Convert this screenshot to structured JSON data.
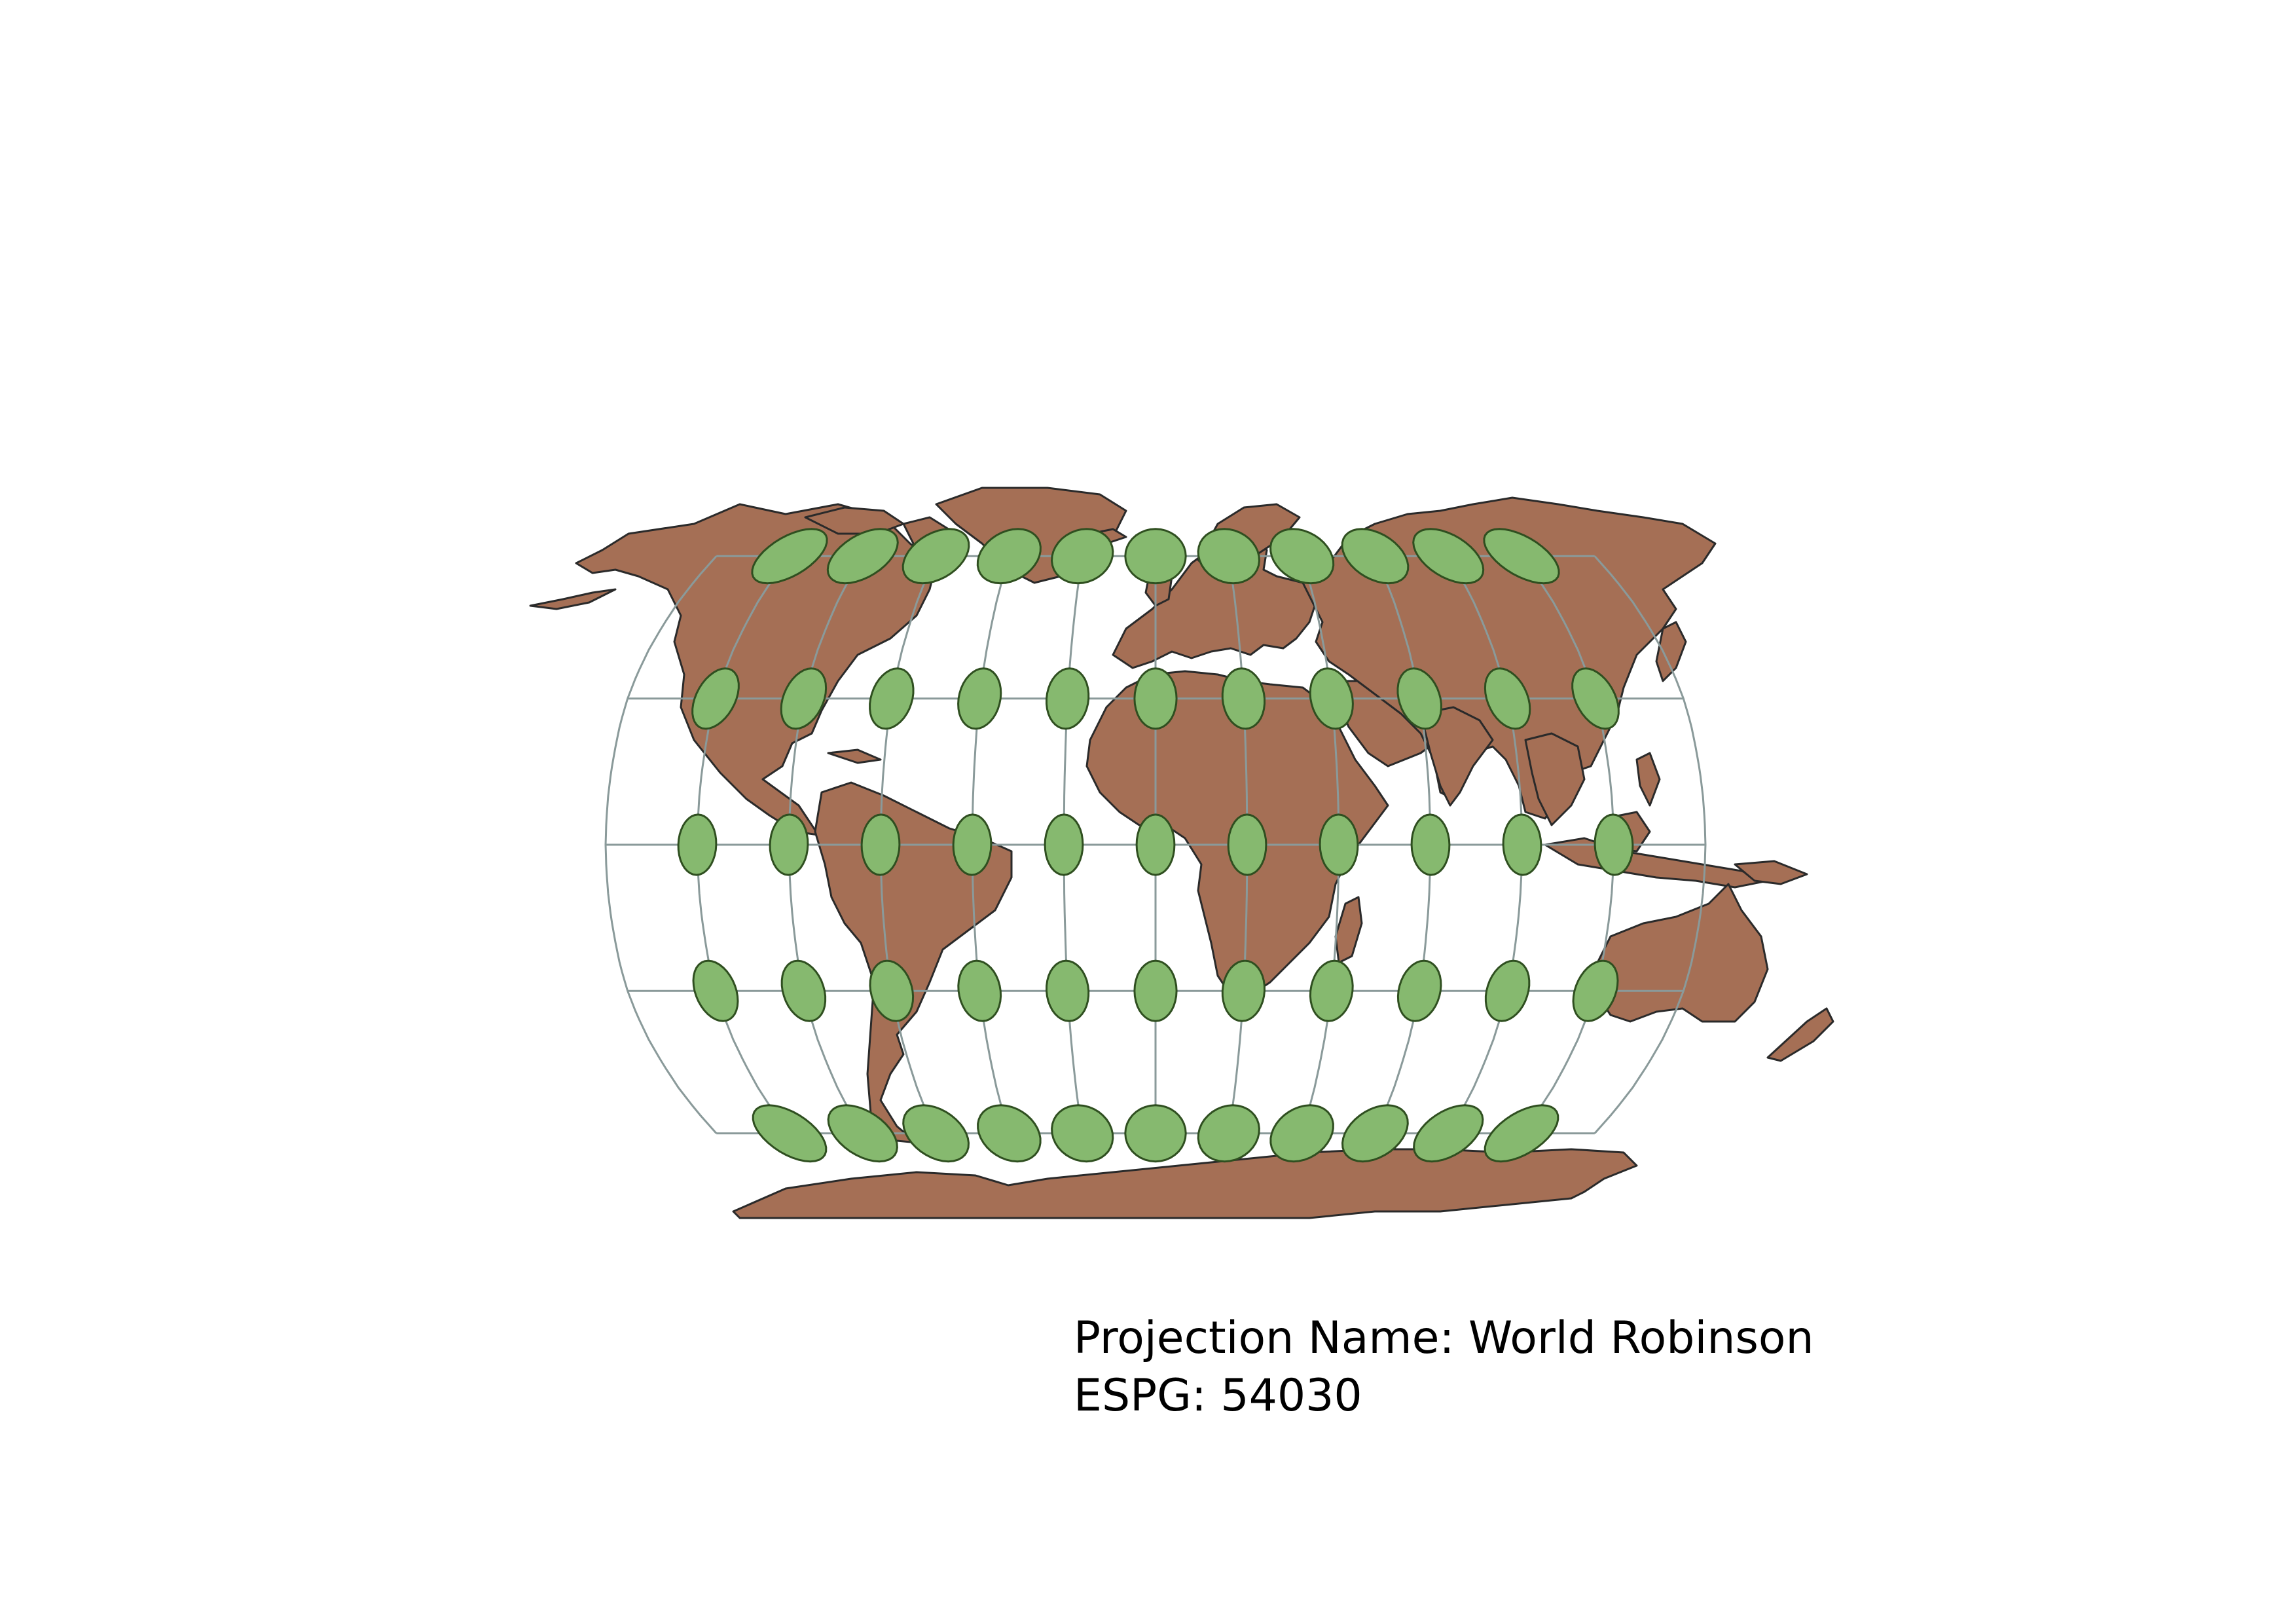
{
  "caption": {
    "projection_line": "Projection Name: World Robinson",
    "code_line": "ESPG: 54030"
  },
  "map": {
    "land_color": "#a56f55",
    "land_stroke": "#2a2a2a",
    "graticule_color": "#8a9a9a",
    "indicatrix_fill": "#86b96f",
    "indicatrix_stroke": "#2f4f20",
    "graticule_lat_step": 30,
    "graticule_lon_step": 30,
    "indicatrix_lat_step": 30,
    "indicatrix_lon_step": 30
  }
}
